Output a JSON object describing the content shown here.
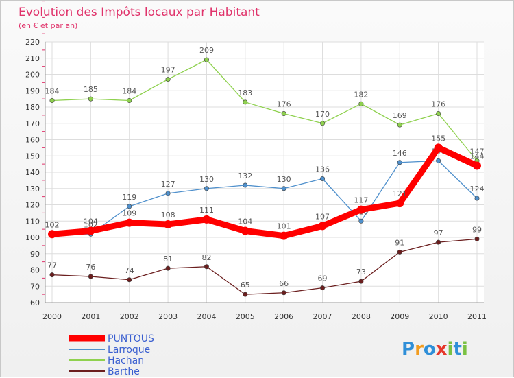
{
  "chart_data": {
    "type": "line",
    "title": "Evolution des Impôts locaux par Habitant",
    "subtitle": "(en € et par an)",
    "xlabel": "",
    "ylabel": "",
    "ylim": [
      60,
      220
    ],
    "y_ticks": [
      60,
      70,
      80,
      90,
      100,
      110,
      120,
      130,
      140,
      150,
      160,
      170,
      180,
      190,
      200,
      210,
      220
    ],
    "x": [
      "2000",
      "2001",
      "2002",
      "2003",
      "2004",
      "2005",
      "2006",
      "2007",
      "2008",
      "2009",
      "2010",
      "2011"
    ],
    "grid": true,
    "legend_position": "bottom-left",
    "series": [
      {
        "name": "Hachan",
        "color": "#8fd14f",
        "values": [
          184,
          185,
          184,
          197,
          209,
          183,
          176,
          170,
          182,
          169,
          176,
          147
        ]
      },
      {
        "name": "Larroque",
        "color": "#4f90cc",
        "values": [
          102,
          102,
          119,
          127,
          130,
          132,
          130,
          136,
          110,
          146,
          147,
          124
        ]
      },
      {
        "name": "Barthe",
        "color": "#6b1e1e",
        "values": [
          77,
          76,
          74,
          81,
          82,
          65,
          66,
          69,
          73,
          91,
          97,
          99
        ]
      },
      {
        "name": "PUNTOUS",
        "color": "#ff0000",
        "values": [
          102,
          104,
          109,
          108,
          111,
          104,
          101,
          107,
          117,
          121,
          155,
          144
        ]
      }
    ],
    "legend_order": [
      "PUNTOUS",
      "Larroque",
      "Hachan",
      "Barthe"
    ],
    "logo_text": "Proxiti"
  }
}
